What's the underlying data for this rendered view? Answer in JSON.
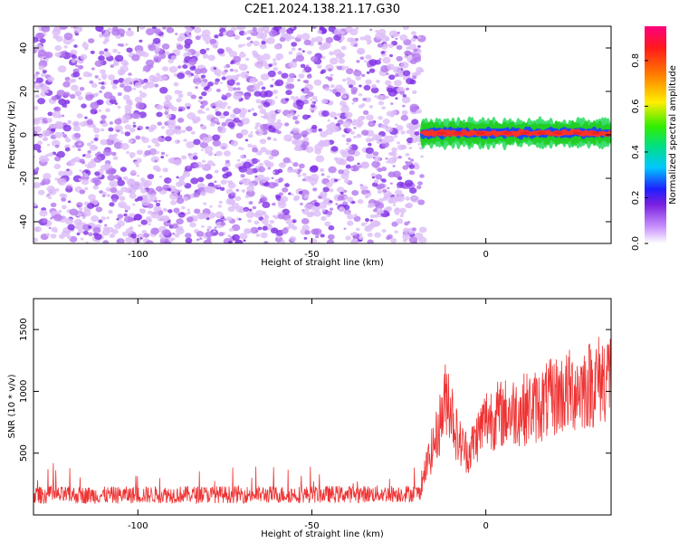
{
  "title": "C2E1.2024.138.21.17.G30",
  "chart_data": [
    {
      "type": "heatmap",
      "panel": "spectrogram",
      "xlabel": "Height of straight line (km)",
      "ylabel": "Frequency (Hz)",
      "xlim": [
        -130,
        36
      ],
      "ylim": [
        -50,
        50
      ],
      "x_ticks": [
        -100,
        -50,
        0
      ],
      "y_ticks": [
        -40,
        -20,
        0,
        20,
        40
      ],
      "noise_region_x": [
        -130,
        -18
      ],
      "signal_region_x": [
        -18,
        36
      ],
      "signal_center_frequency": 0,
      "signal_frequency_halfwidth": 4,
      "colorbar": {
        "label": "Normalized spectral amplitude",
        "range": [
          0.0,
          0.95
        ],
        "ticks": [
          0.0,
          0.2,
          0.4,
          0.6,
          0.8
        ],
        "tick_labels": [
          "0.0",
          "0.2",
          "0.4",
          "0.6",
          "0.8"
        ]
      }
    },
    {
      "type": "line",
      "panel": "snr",
      "xlabel": "Height of straight line (km)",
      "ylabel": "SNR (10 * v/v)",
      "xlim": [
        -130,
        36
      ],
      "ylim": [
        0,
        1750
      ],
      "x_ticks": [
        -100,
        -50,
        0
      ],
      "y_ticks": [
        500,
        1000,
        1500
      ],
      "color": "#ee3333",
      "series": [
        {
          "x": [
            -130,
            -110,
            -90,
            -70,
            -50,
            -30,
            -19,
            -17,
            -14,
            -11,
            -8,
            -5,
            0,
            5,
            10,
            15,
            20,
            25,
            30,
            33,
            36
          ],
          "values": [
            160,
            160,
            165,
            165,
            165,
            170,
            175,
            400,
            650,
            1000,
            600,
            500,
            780,
            820,
            850,
            880,
            960,
            1010,
            1060,
            1100,
            1150
          ]
        }
      ]
    }
  ]
}
